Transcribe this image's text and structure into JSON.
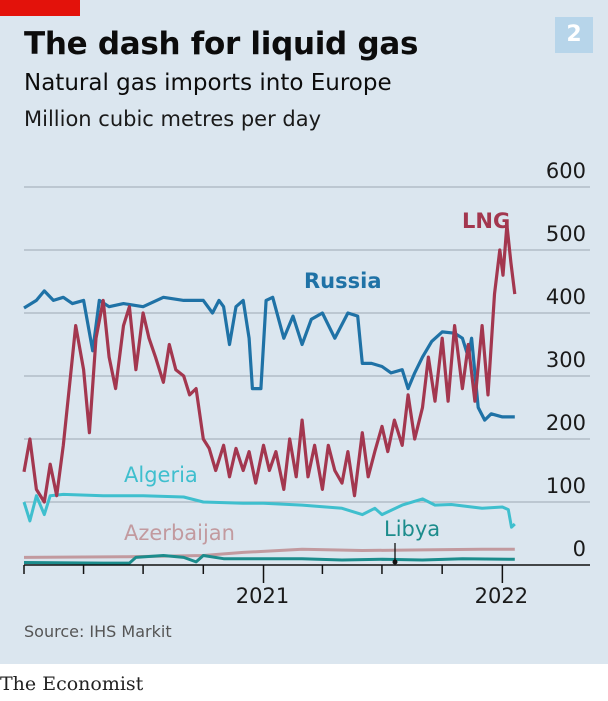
{
  "header": {
    "title": "The dash for liquid gas",
    "subtitle": "Natural gas imports into Europe",
    "unit": "Million cubic metres per day",
    "chart_number": "2"
  },
  "footer": {
    "source": "Source: IHS Markit",
    "brand": "The Economist"
  },
  "colors": {
    "background": "#dbe6ef",
    "brand_red": "#e3120b",
    "lng": "#a3374f",
    "russia": "#1f72a6",
    "algeria": "#3fbfce",
    "azerbaijan": "#c29a9f",
    "libya": "#1c8c8c"
  },
  "chart_data": {
    "type": "line",
    "title": "The dash for liquid gas",
    "subtitle": "Natural gas imports into Europe",
    "ylabel": "Million cubic metres per day",
    "ylim": [
      0,
      600
    ],
    "yticks": [
      "0",
      "100",
      "200",
      "300",
      "400",
      "500",
      "600"
    ],
    "xlim": [
      "2020-01-01",
      "2022-01-31"
    ],
    "xtick_labels": [
      "2021",
      "2022"
    ],
    "grid": true,
    "legend": "inline labels",
    "series": [
      {
        "name": "LNG",
        "color": "#a3374f",
        "points": [
          [
            "2020-01-01",
            148
          ],
          [
            "2020-01-10",
            200
          ],
          [
            "2020-01-20",
            120
          ],
          [
            "2020-02-01",
            100
          ],
          [
            "2020-02-10",
            160
          ],
          [
            "2020-02-20",
            110
          ],
          [
            "2020-03-01",
            190
          ],
          [
            "2020-03-10",
            280
          ],
          [
            "2020-03-20",
            380
          ],
          [
            "2020-04-01",
            310
          ],
          [
            "2020-04-10",
            210
          ],
          [
            "2020-04-20",
            360
          ],
          [
            "2020-05-01",
            420
          ],
          [
            "2020-05-10",
            330
          ],
          [
            "2020-05-20",
            280
          ],
          [
            "2020-06-01",
            380
          ],
          [
            "2020-06-10",
            410
          ],
          [
            "2020-06-20",
            310
          ],
          [
            "2020-07-01",
            400
          ],
          [
            "2020-07-10",
            360
          ],
          [
            "2020-07-20",
            330
          ],
          [
            "2020-08-01",
            290
          ],
          [
            "2020-08-10",
            350
          ],
          [
            "2020-08-20",
            310
          ],
          [
            "2020-09-01",
            300
          ],
          [
            "2020-09-10",
            270
          ],
          [
            "2020-09-20",
            280
          ],
          [
            "2020-10-01",
            200
          ],
          [
            "2020-10-10",
            185
          ],
          [
            "2020-10-20",
            150
          ],
          [
            "2020-11-01",
            190
          ],
          [
            "2020-11-10",
            140
          ],
          [
            "2020-11-20",
            185
          ],
          [
            "2020-12-01",
            150
          ],
          [
            "2020-12-10",
            180
          ],
          [
            "2020-12-20",
            130
          ],
          [
            "2021-01-01",
            190
          ],
          [
            "2021-01-10",
            150
          ],
          [
            "2021-01-20",
            180
          ],
          [
            "2021-02-01",
            120
          ],
          [
            "2021-02-10",
            200
          ],
          [
            "2021-02-20",
            140
          ],
          [
            "2021-03-01",
            230
          ],
          [
            "2021-03-10",
            140
          ],
          [
            "2021-03-20",
            190
          ],
          [
            "2021-04-01",
            120
          ],
          [
            "2021-04-10",
            190
          ],
          [
            "2021-04-20",
            150
          ],
          [
            "2021-05-01",
            130
          ],
          [
            "2021-05-10",
            180
          ],
          [
            "2021-05-20",
            110
          ],
          [
            "2021-06-01",
            210
          ],
          [
            "2021-06-10",
            140
          ],
          [
            "2021-06-20",
            180
          ],
          [
            "2021-07-01",
            220
          ],
          [
            "2021-07-10",
            180
          ],
          [
            "2021-07-20",
            230
          ],
          [
            "2021-08-01",
            190
          ],
          [
            "2021-08-10",
            270
          ],
          [
            "2021-08-20",
            200
          ],
          [
            "2021-09-01",
            250
          ],
          [
            "2021-09-10",
            330
          ],
          [
            "2021-09-20",
            260
          ],
          [
            "2021-10-01",
            360
          ],
          [
            "2021-10-10",
            260
          ],
          [
            "2021-10-20",
            380
          ],
          [
            "2021-11-01",
            280
          ],
          [
            "2021-11-10",
            350
          ],
          [
            "2021-11-20",
            260
          ],
          [
            "2021-12-01",
            380
          ],
          [
            "2021-12-10",
            270
          ],
          [
            "2021-12-20",
            430
          ],
          [
            "2021-12-28",
            500
          ],
          [
            "2022-01-02",
            460
          ],
          [
            "2022-01-08",
            540
          ],
          [
            "2022-01-14",
            480
          ],
          [
            "2022-01-20",
            430
          ]
        ]
      },
      {
        "name": "Russia",
        "color": "#1f72a6",
        "points": [
          [
            "2020-01-01",
            408
          ],
          [
            "2020-01-20",
            420
          ],
          [
            "2020-02-01",
            435
          ],
          [
            "2020-02-15",
            420
          ],
          [
            "2020-03-01",
            425
          ],
          [
            "2020-03-15",
            415
          ],
          [
            "2020-04-01",
            420
          ],
          [
            "2020-04-15",
            340
          ],
          [
            "2020-04-25",
            420
          ],
          [
            "2020-05-10",
            410
          ],
          [
            "2020-06-01",
            415
          ],
          [
            "2020-07-01",
            410
          ],
          [
            "2020-08-01",
            425
          ],
          [
            "2020-09-01",
            420
          ],
          [
            "2020-10-01",
            420
          ],
          [
            "2020-10-15",
            400
          ],
          [
            "2020-10-25",
            420
          ],
          [
            "2020-11-01",
            410
          ],
          [
            "2020-11-10",
            350
          ],
          [
            "2020-11-20",
            410
          ],
          [
            "2020-12-01",
            420
          ],
          [
            "2020-12-10",
            360
          ],
          [
            "2020-12-15",
            280
          ],
          [
            "2020-12-28",
            280
          ],
          [
            "2021-01-05",
            420
          ],
          [
            "2021-01-15",
            425
          ],
          [
            "2021-02-01",
            360
          ],
          [
            "2021-02-15",
            395
          ],
          [
            "2021-03-01",
            350
          ],
          [
            "2021-03-15",
            390
          ],
          [
            "2021-04-01",
            400
          ],
          [
            "2021-04-20",
            360
          ],
          [
            "2021-05-10",
            400
          ],
          [
            "2021-05-25",
            395
          ],
          [
            "2021-06-01",
            320
          ],
          [
            "2021-06-15",
            320
          ],
          [
            "2021-07-01",
            315
          ],
          [
            "2021-07-15",
            305
          ],
          [
            "2021-08-01",
            310
          ],
          [
            "2021-08-10",
            280
          ],
          [
            "2021-08-20",
            305
          ],
          [
            "2021-09-01",
            330
          ],
          [
            "2021-09-15",
            355
          ],
          [
            "2021-10-01",
            370
          ],
          [
            "2021-10-20",
            368
          ],
          [
            "2021-11-01",
            360
          ],
          [
            "2021-11-10",
            330
          ],
          [
            "2021-11-15",
            360
          ],
          [
            "2021-11-25",
            250
          ],
          [
            "2021-12-05",
            230
          ],
          [
            "2021-12-15",
            240
          ],
          [
            "2022-01-01",
            235
          ],
          [
            "2022-01-20",
            235
          ]
        ]
      },
      {
        "name": "Algeria",
        "color": "#3fbfce",
        "points": [
          [
            "2020-01-01",
            100
          ],
          [
            "2020-01-10",
            70
          ],
          [
            "2020-01-20",
            110
          ],
          [
            "2020-02-01",
            80
          ],
          [
            "2020-02-10",
            110
          ],
          [
            "2020-03-01",
            112
          ],
          [
            "2020-05-01",
            110
          ],
          [
            "2020-07-01",
            110
          ],
          [
            "2020-09-01",
            108
          ],
          [
            "2020-10-01",
            100
          ],
          [
            "2020-12-01",
            98
          ],
          [
            "2021-01-01",
            98
          ],
          [
            "2021-03-01",
            95
          ],
          [
            "2021-05-01",
            90
          ],
          [
            "2021-06-01",
            80
          ],
          [
            "2021-06-20",
            90
          ],
          [
            "2021-07-01",
            80
          ],
          [
            "2021-08-01",
            95
          ],
          [
            "2021-09-01",
            105
          ],
          [
            "2021-09-20",
            95
          ],
          [
            "2021-10-15",
            96
          ],
          [
            "2021-12-01",
            90
          ],
          [
            "2022-01-01",
            92
          ],
          [
            "2022-01-10",
            88
          ],
          [
            "2022-01-15",
            60
          ],
          [
            "2022-01-20",
            65
          ]
        ]
      },
      {
        "name": "Azerbaijan",
        "color": "#c29a9f",
        "points": [
          [
            "2020-01-01",
            12
          ],
          [
            "2020-06-01",
            13
          ],
          [
            "2020-10-01",
            15
          ],
          [
            "2020-12-01",
            20
          ],
          [
            "2021-03-01",
            25
          ],
          [
            "2021-06-01",
            23
          ],
          [
            "2021-09-01",
            24
          ],
          [
            "2021-12-01",
            25
          ],
          [
            "2022-01-20",
            25
          ]
        ]
      },
      {
        "name": "Libya",
        "color": "#1c8c8c",
        "points": [
          [
            "2020-01-01",
            4
          ],
          [
            "2020-05-01",
            3
          ],
          [
            "2020-06-10",
            3
          ],
          [
            "2020-06-20",
            12
          ],
          [
            "2020-08-01",
            15
          ],
          [
            "2020-09-01",
            12
          ],
          [
            "2020-09-20",
            5
          ],
          [
            "2020-10-01",
            15
          ],
          [
            "2020-11-01",
            10
          ],
          [
            "2021-01-01",
            10
          ],
          [
            "2021-03-01",
            10
          ],
          [
            "2021-05-01",
            8
          ],
          [
            "2021-07-01",
            9
          ],
          [
            "2021-09-01",
            8
          ],
          [
            "2021-11-01",
            10
          ],
          [
            "2022-01-20",
            9
          ]
        ]
      }
    ]
  }
}
